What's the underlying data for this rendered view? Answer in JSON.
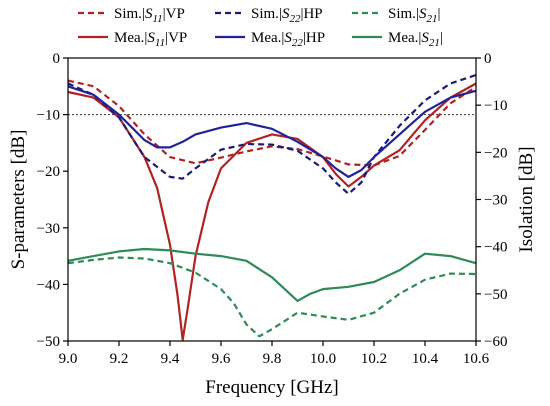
{
  "chart_data": {
    "type": "line",
    "xlabel": "Frequency [GHz]",
    "ylabel": "S-parameters [dB]",
    "y2label": "Isolation [dB]",
    "xlim": [
      9.0,
      10.6
    ],
    "ylim": [
      -50,
      0
    ],
    "y2lim": [
      -60,
      0
    ],
    "xticks": [
      "9.0",
      "9.2",
      "9.4",
      "9.6",
      "9.8",
      "10.0",
      "10.2",
      "10.4",
      "10.6"
    ],
    "yticks": [
      "0",
      "−10",
      "−20",
      "−30",
      "−40",
      "−50"
    ],
    "y2ticks": [
      "0",
      "−10",
      "−20",
      "−30",
      "−40",
      "−50",
      "−60"
    ],
    "reference_line_y": -10,
    "legend_placement": "top",
    "series": [
      {
        "legend_prefix": "Sim.|",
        "legend_italic": "S",
        "legend_sub": "11",
        "legend_suffix": "|VP",
        "style": "dashed",
        "color": "#b22222",
        "axis": "left",
        "x": [
          9.0,
          9.1,
          9.2,
          9.3,
          9.4,
          9.5,
          9.6,
          9.7,
          9.8,
          9.9,
          10.0,
          10.1,
          10.2,
          10.3,
          10.4,
          10.5,
          10.6
        ],
        "y": [
          -4,
          -5,
          -8.5,
          -13.5,
          -17.5,
          -18.6,
          -17.6,
          -16.5,
          -15.6,
          -16.1,
          -17.4,
          -18.8,
          -19.0,
          -17.3,
          -12.7,
          -8.0,
          -5.1
        ]
      },
      {
        "legend_prefix": "Mea.|",
        "legend_italic": "S",
        "legend_sub": "11",
        "legend_suffix": "|VP",
        "style": "solid",
        "color": "#b22222",
        "axis": "left",
        "x": [
          9.0,
          9.1,
          9.2,
          9.3,
          9.35,
          9.4,
          9.43,
          9.45,
          9.47,
          9.5,
          9.55,
          9.6,
          9.7,
          9.8,
          9.9,
          10.0,
          10.05,
          10.1,
          10.15,
          10.2,
          10.3,
          10.4,
          10.5,
          10.6
        ],
        "y": [
          -6,
          -7,
          -10.5,
          -17.5,
          -23,
          -33,
          -42,
          -49.8,
          -44,
          -35,
          -25.5,
          -19.5,
          -15,
          -13.5,
          -14.3,
          -17.5,
          -20.5,
          -22.7,
          -21,
          -19,
          -16.3,
          -11,
          -7,
          -4.5
        ]
      },
      {
        "legend_prefix": "Sim.|",
        "legend_italic": "S",
        "legend_sub": "22",
        "legend_suffix": "|HP",
        "style": "dashed",
        "color": "#1a1a7a",
        "axis": "left",
        "x": [
          9.0,
          9.1,
          9.2,
          9.3,
          9.4,
          9.45,
          9.5,
          9.6,
          9.7,
          9.8,
          9.9,
          10.0,
          10.05,
          10.1,
          10.15,
          10.2,
          10.3,
          10.4,
          10.5,
          10.6
        ],
        "y": [
          -4.5,
          -6.5,
          -10.5,
          -17.5,
          -21,
          -21.3,
          -19.5,
          -16.2,
          -15.2,
          -15.3,
          -16.4,
          -19.5,
          -22,
          -24,
          -22,
          -17.5,
          -12,
          -7.5,
          -4.5,
          -3.0
        ]
      },
      {
        "legend_prefix": "Mea.|",
        "legend_italic": "S",
        "legend_sub": "22",
        "legend_suffix": "|HP",
        "style": "solid",
        "color": "#22229a",
        "axis": "left",
        "x": [
          9.0,
          9.1,
          9.2,
          9.3,
          9.35,
          9.4,
          9.45,
          9.5,
          9.6,
          9.7,
          9.8,
          9.9,
          10.0,
          10.05,
          10.1,
          10.15,
          10.2,
          10.3,
          10.4,
          10.5,
          10.6
        ],
        "y": [
          -5,
          -6.5,
          -10,
          -14.5,
          -15.8,
          -15.8,
          -14.8,
          -13.5,
          -12.3,
          -11.5,
          -12.5,
          -14.8,
          -17.5,
          -19.5,
          -21,
          -19.8,
          -17.5,
          -13.5,
          -9.5,
          -7,
          -5.8
        ]
      },
      {
        "legend_prefix": "Sim.|",
        "legend_italic": "S",
        "legend_sub": "21",
        "legend_suffix": "|",
        "style": "dashed",
        "color": "#2e8b57",
        "axis": "right",
        "x": [
          9.0,
          9.1,
          9.2,
          9.3,
          9.4,
          9.5,
          9.6,
          9.65,
          9.7,
          9.75,
          9.8,
          9.9,
          10.0,
          10.1,
          10.2,
          10.3,
          10.4,
          10.5,
          10.6
        ],
        "y": [
          -43.5,
          -42.8,
          -42.3,
          -42.5,
          -43.5,
          -45.5,
          -49,
          -52,
          -56.5,
          -59,
          -57.5,
          -54,
          -54.8,
          -55.5,
          -54,
          -50,
          -47,
          -45.7,
          -45.8
        ]
      },
      {
        "legend_prefix": "Mea.|",
        "legend_italic": "S",
        "legend_sub": "21",
        "legend_suffix": "|",
        "style": "solid",
        "color": "#2e8b57",
        "axis": "right",
        "x": [
          9.0,
          9.1,
          9.2,
          9.3,
          9.4,
          9.5,
          9.6,
          9.7,
          9.8,
          9.85,
          9.9,
          9.95,
          10.0,
          10.1,
          10.2,
          10.3,
          10.4,
          10.5,
          10.6
        ],
        "y": [
          -43,
          -42,
          -41,
          -40.5,
          -40.8,
          -41.5,
          -42,
          -43,
          -46.5,
          -49,
          -51.5,
          -50,
          -49,
          -48.5,
          -47.5,
          -45,
          -41.5,
          -42,
          -43.5
        ]
      }
    ]
  }
}
